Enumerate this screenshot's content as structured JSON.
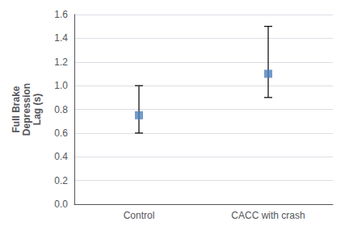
{
  "chart_data": {
    "type": "scatter",
    "ylabel": "Full Brake\nDepression\nLag (s)",
    "categories": [
      "Control",
      "CACC with crash"
    ],
    "values": [
      0.75,
      1.1
    ],
    "ci_lower": [
      0.6,
      0.9
    ],
    "ci_upper": [
      1.0,
      1.5
    ],
    "color": "#4f81bd",
    "marker": "square",
    "ylim": [
      0.0,
      1.6
    ],
    "yticks": [
      {
        "value": 0.0,
        "label": "0.0"
      },
      0.2,
      0.4,
      0.6,
      0.8,
      {
        "value": 1.0,
        "label": "1.0"
      },
      1.2,
      1.4,
      1.6
    ],
    "grid": true
  }
}
